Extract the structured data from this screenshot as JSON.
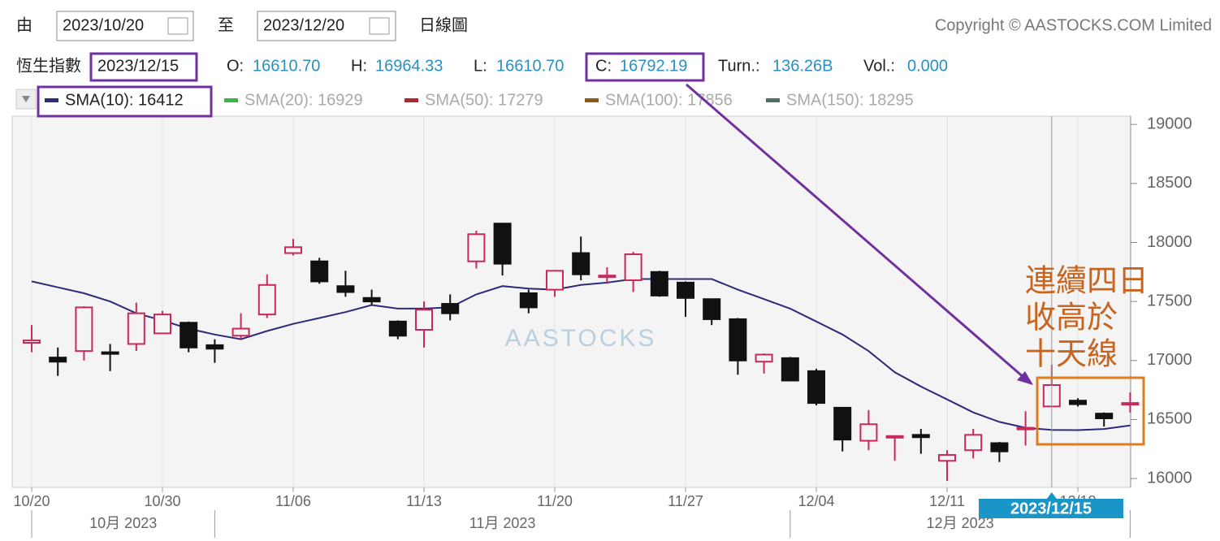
{
  "header": {
    "from_label": "由",
    "from_date": "2023/10/20",
    "to_label": "至",
    "to_date": "2023/12/20",
    "chart_kind": "日線圖",
    "copyright": "Copyright © AASTOCKS.COM Limited",
    "index_name": "恆生指數",
    "date": "2023/12/15",
    "info": [
      {
        "label": "O:",
        "value": "16610.70"
      },
      {
        "label": "H:",
        "value": "16964.33"
      },
      {
        "label": "L:",
        "value": "16610.70"
      },
      {
        "label": "C:",
        "value": "16792.19"
      },
      {
        "label": "Turn.:",
        "value": "136.26B"
      },
      {
        "label": "Vol.:",
        "value": "0.000"
      }
    ],
    "legend": [
      {
        "label": "SMA(10): 16412",
        "color": "#2e2a7a",
        "active": true
      },
      {
        "label": "SMA(20): 16929",
        "color": "#3cb54a",
        "active": false
      },
      {
        "label": "SMA(50): 17279",
        "color": "#b0282e",
        "active": false
      },
      {
        "label": "SMA(100): 17856",
        "color": "#8a5a14",
        "active": false
      },
      {
        "label": "SMA(150): 18295",
        "color": "#4e6e62",
        "active": false
      }
    ]
  },
  "chart_data": {
    "type": "candlestick",
    "categories": [
      "10/20",
      null,
      null,
      null,
      null,
      "10/30",
      null,
      null,
      null,
      null,
      "11/06",
      null,
      null,
      null,
      null,
      "11/13",
      null,
      null,
      null,
      null,
      "11/20",
      null,
      null,
      null,
      null,
      "11/27",
      null,
      null,
      null,
      null,
      "12/04",
      null,
      null,
      null,
      null,
      "12/11",
      null,
      null,
      null,
      null,
      "12/18",
      null,
      null
    ],
    "open": [
      17150,
      17025,
      17080,
      17070,
      17140,
      17230,
      17320,
      17130,
      17210,
      17390,
      17910,
      17840,
      17630,
      17530,
      17330,
      17260,
      17480,
      17840,
      18160,
      17570,
      17600,
      17910,
      17710,
      17680,
      17750,
      17660,
      17520,
      17350,
      16990,
      17020,
      16910,
      16600,
      16320,
      16360,
      16370,
      16150,
      16240,
      16300,
      16420,
      16610.7,
      16660,
      16550,
      16630
    ],
    "high": [
      17300,
      17110,
      17460,
      17140,
      17490,
      17420,
      17330,
      17180,
      17400,
      17730,
      18030,
      17870,
      17760,
      17600,
      17340,
      17500,
      17560,
      18100,
      18160,
      17600,
      17760,
      18050,
      17790,
      17920,
      17760,
      17670,
      17520,
      17360,
      17060,
      17030,
      16930,
      16600,
      16580,
      16360,
      16420,
      16240,
      16420,
      16310,
      16570,
      16964.33,
      16680,
      16560,
      16730
    ],
    "low": [
      17070,
      16870,
      17000,
      16910,
      17080,
      17230,
      17070,
      16980,
      17180,
      17360,
      17890,
      17650,
      17540,
      17470,
      17180,
      17110,
      17340,
      17780,
      17720,
      17400,
      17540,
      17680,
      17650,
      17580,
      17540,
      17370,
      17300,
      16880,
      16890,
      16830,
      16620,
      16230,
      16240,
      16150,
      16210,
      15980,
      16170,
      16140,
      16280,
      16610.7,
      16610,
      16440,
      16560
    ],
    "close": [
      17170,
      16990,
      17450,
      17060,
      17400,
      17390,
      17110,
      17100,
      17270,
      17640,
      17960,
      17670,
      17580,
      17500,
      17210,
      17430,
      17400,
      18070,
      17820,
      17450,
      17760,
      17730,
      17720,
      17900,
      17550,
      17530,
      17350,
      17000,
      17050,
      16830,
      16640,
      16330,
      16460,
      16360,
      16350,
      16200,
      16370,
      16230,
      16430,
      16792.19,
      16630,
      16510,
      16640
    ],
    "up_color": "#c8285a",
    "down_color": "#111111",
    "sma": {
      "color": "#2e2a7a",
      "values": [
        17670,
        17620,
        17570,
        17500,
        17400,
        17340,
        17270,
        17220,
        17180,
        17250,
        17310,
        17360,
        17410,
        17470,
        17440,
        17440,
        17450,
        17560,
        17630,
        17610,
        17600,
        17640,
        17660,
        17690,
        17690,
        17690,
        17690,
        17600,
        17520,
        17440,
        17330,
        17220,
        17080,
        16900,
        16780,
        16670,
        16560,
        16480,
        16430,
        16412,
        16410,
        16420,
        16450
      ]
    },
    "ylim": [
      15925,
      19070
    ],
    "yticks": [
      16000,
      16500,
      17000,
      17500,
      18000,
      18500,
      19000
    ],
    "grid": true,
    "months": [
      "10月 2023",
      "11月 2023",
      "12月 2023"
    ],
    "crosshair_label": "2023/12/15",
    "watermark": "AASTOCKS",
    "annotation": [
      "連續四日",
      "收高於",
      "十天線"
    ]
  }
}
